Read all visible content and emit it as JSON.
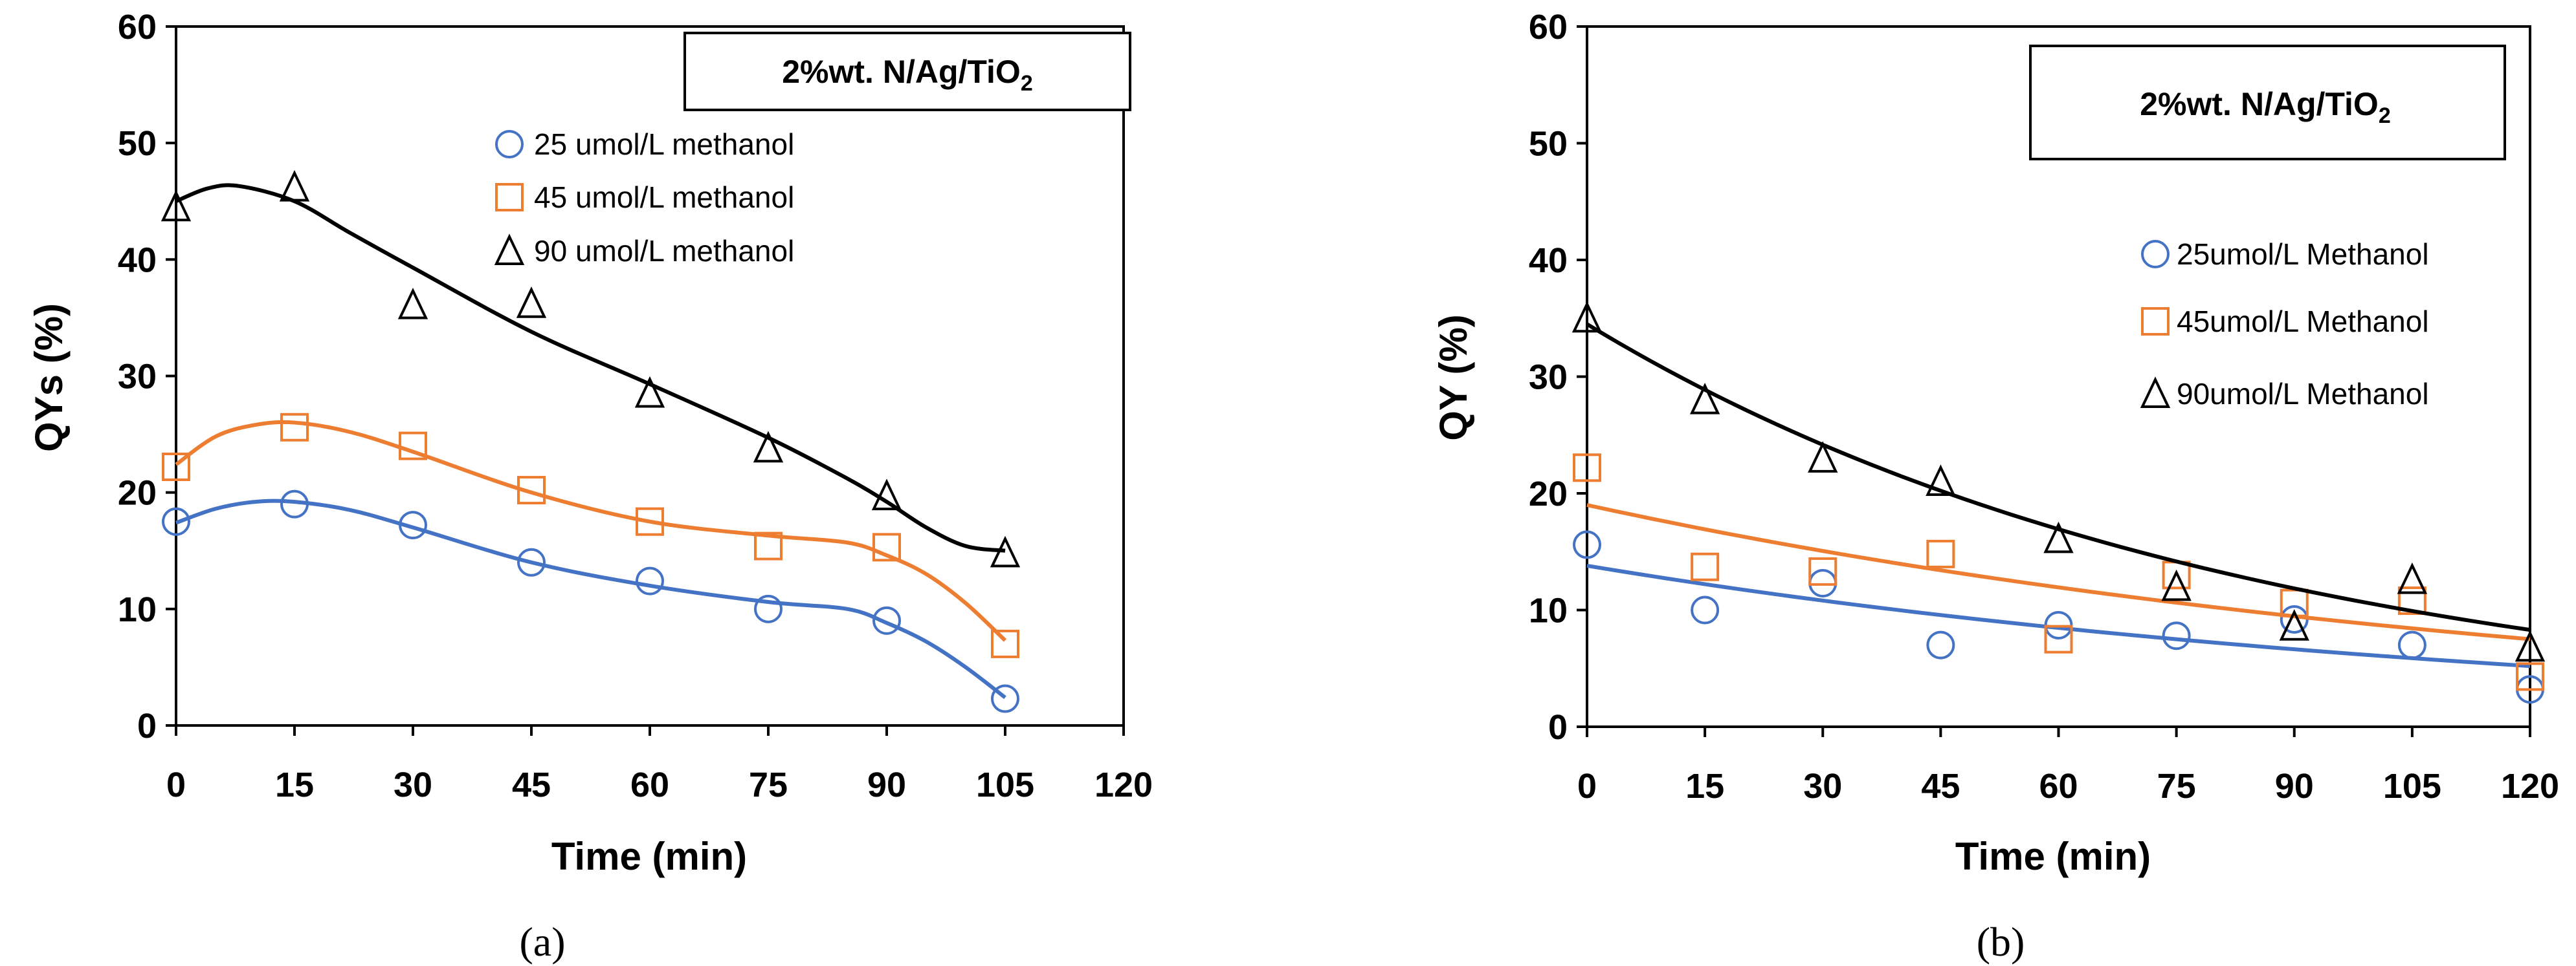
{
  "colors": {
    "s25": "#4472C4",
    "s45": "#ED7D31",
    "s90": "#000000"
  },
  "chart_data": [
    {
      "type": "scatter",
      "panel": "(a)",
      "title": "2%wt. N/Ag/TiO2",
      "title_main": "2%wt. N/Ag/TiO",
      "title_sub": "2",
      "xlabel": "Time (min)",
      "ylabel": "QYs (%)",
      "xlim": [
        0,
        120
      ],
      "ylim": [
        0,
        60
      ],
      "xticks": [
        0,
        15,
        30,
        45,
        60,
        75,
        90,
        105,
        120
      ],
      "yticks": [
        0,
        10,
        20,
        30,
        40,
        50,
        60
      ],
      "legend_position": "top-right",
      "trendline": "polynomial",
      "series": [
        {
          "name": "25 umol/L methanol",
          "marker": "circle",
          "color": "#4472C4",
          "x": [
            0,
            15,
            30,
            45,
            60,
            75,
            90,
            105
          ],
          "y": [
            17.5,
            19,
            17.2,
            14,
            12.4,
            10,
            9,
            2.3
          ],
          "fit_x": [
            0,
            5,
            10,
            15,
            22,
            30,
            45,
            60,
            75,
            85,
            90,
            95,
            100,
            105
          ],
          "fit_y": [
            17.4,
            18.6,
            19.2,
            19.2,
            18.5,
            17,
            14,
            12,
            10.6,
            10,
            8.8,
            7.2,
            5,
            2.4
          ]
        },
        {
          "name": "45 umol/L methanol",
          "marker": "square",
          "color": "#ED7D31",
          "x": [
            0,
            15,
            30,
            45,
            60,
            75,
            90,
            105
          ],
          "y": [
            22.2,
            25.6,
            24,
            20.2,
            17.5,
            15.4,
            15.3,
            7
          ],
          "fit_x": [
            0,
            5,
            10,
            15,
            22,
            30,
            45,
            60,
            75,
            85,
            90,
            95,
            100,
            105
          ],
          "fit_y": [
            22.4,
            24.8,
            25.8,
            26,
            25.2,
            23.5,
            20,
            17.5,
            16.3,
            15.7,
            14.6,
            13,
            10.5,
            7.3
          ]
        },
        {
          "name": "90 umol/L methanol",
          "marker": "triangle",
          "color": "#000000",
          "x": [
            0,
            15,
            30,
            45,
            60,
            75,
            90,
            105
          ],
          "y": [
            44.5,
            46.2,
            36.1,
            36.2,
            28.5,
            23.8,
            19.7,
            14.8
          ],
          "fit_x": [
            0,
            4,
            8,
            15,
            22,
            30,
            45,
            60,
            75,
            85,
            90,
            95,
            100,
            105
          ],
          "fit_y": [
            45,
            46.1,
            46.3,
            45,
            42.3,
            39.3,
            33.8,
            29.3,
            24.7,
            21.2,
            19.2,
            17,
            15.4,
            15
          ]
        }
      ]
    },
    {
      "type": "scatter",
      "panel": "(b)",
      "title": "2%wt. N/Ag/TiO2",
      "title_main": "2%wt. N/Ag/TiO",
      "title_sub": "2",
      "xlabel": "Time (min)",
      "ylabel": "QY (%)",
      "xlim": [
        0,
        120
      ],
      "ylim": [
        0,
        60
      ],
      "xticks": [
        0,
        15,
        30,
        45,
        60,
        75,
        90,
        105,
        120
      ],
      "yticks": [
        0,
        10,
        20,
        30,
        40,
        50,
        60
      ],
      "legend_position": "right",
      "trendline": "exponential",
      "series": [
        {
          "name": "25umol/L Methanol",
          "marker": "circle",
          "color": "#4472C4",
          "x": [
            0,
            15,
            30,
            45,
            60,
            75,
            90,
            105,
            120
          ],
          "y": [
            15.6,
            10,
            12.3,
            7,
            8.7,
            7.8,
            9.2,
            7,
            3.2
          ],
          "fit_a": 13.8,
          "fit_k": 0.00813
        },
        {
          "name": "45umol/L Methanol",
          "marker": "square",
          "color": "#ED7D31",
          "x": [
            0,
            15,
            30,
            45,
            60,
            75,
            90,
            105,
            120
          ],
          "y": [
            22.2,
            13.7,
            13.3,
            14.8,
            7.5,
            13,
            10.6,
            10.8,
            4.3
          ],
          "fit_a": 19,
          "fit_k": 0.00774
        },
        {
          "name": "90umol/L Methanol",
          "marker": "triangle",
          "color": "#000000",
          "x": [
            0,
            15,
            30,
            45,
            60,
            75,
            90,
            105,
            120
          ],
          "y": [
            35,
            28,
            23,
            21,
            16.1,
            12,
            8.6,
            12.6,
            6.8
          ],
          "fit_a": 34.5,
          "fit_k": 0.01187
        }
      ]
    }
  ]
}
